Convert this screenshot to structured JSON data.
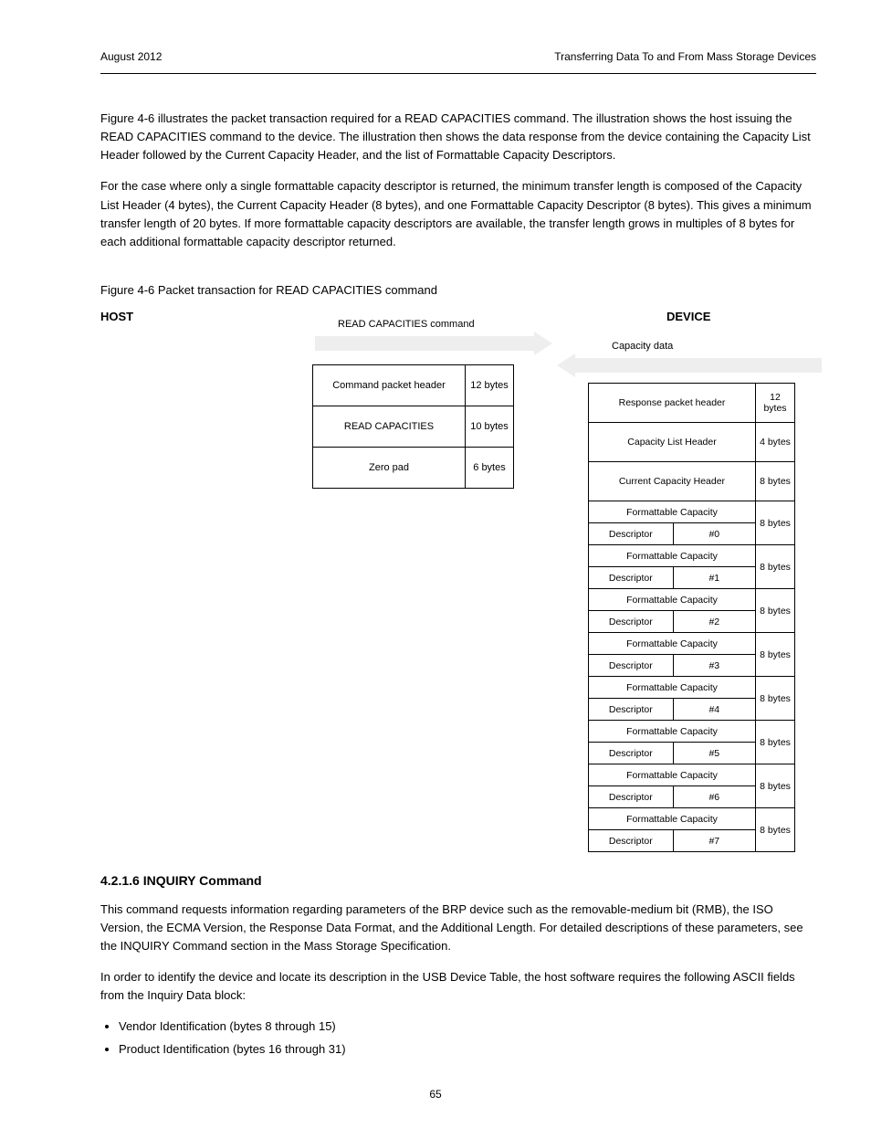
{
  "hdr_left": "August 2012",
  "hdr_right": "Transferring Data To and From Mass Storage Devices",
  "paragraphs": [
    "Figure 4-6 illustrates the packet transaction required for a READ CAPACITIES command. The illustration shows the host issuing the READ CAPACITIES command to the device. The illustration then shows the data response from the device containing the Capacity List Header followed by the Current Capacity Header, and the list of Formattable Capacity Descriptors.",
    "For the case where only a single formattable capacity descriptor is returned, the minimum transfer length is composed of the Capacity List Header (4 bytes), the Current Capacity Header (8 bytes), and one Formattable Capacity Descriptor (8 bytes). This gives a minimum transfer length of 20 bytes. If more formattable capacity descriptors are available, the transfer length grows in multiples of 8 bytes for each additional formattable capacity descriptor returned."
  ],
  "figure_caption": "Figure 4-6  Packet transaction for READ CAPACITIES command",
  "host_label": "HOST",
  "device_label": "DEVICE",
  "arrow_r_label": "READ CAPACITIES command",
  "arrow_l_label": "Capacity data",
  "cmd_rows": [
    {
      "c0": "Command packet header",
      "c1": "12 bytes"
    },
    {
      "c0": "READ CAPACITIES",
      "c1": "10 bytes"
    },
    {
      "c0": "Zero pad",
      "c1": "6 bytes"
    }
  ],
  "resp_rows": [
    {
      "type": "single",
      "r0": "Response packet header",
      "r1": "12 bytes"
    },
    {
      "type": "single",
      "r0": "Capacity List Header",
      "r1": "4 bytes"
    },
    {
      "type": "single",
      "r0": "Current Capacity Header",
      "r1": "8 bytes"
    },
    {
      "type": "split",
      "top": "Formattable Capacity",
      "b0": "Descriptor",
      "b1": "#0",
      "r1": "8 bytes"
    },
    {
      "type": "split",
      "top": "Formattable Capacity",
      "b0": "Descriptor",
      "b1": "#1",
      "r1": "8 bytes"
    },
    {
      "type": "split",
      "top": "Formattable Capacity",
      "b0": "Descriptor",
      "b1": "#2",
      "r1": "8 bytes"
    },
    {
      "type": "split",
      "top": "Formattable Capacity",
      "b0": "Descriptor",
      "b1": "#3",
      "r1": "8 bytes"
    },
    {
      "type": "split",
      "top": "Formattable Capacity",
      "b0": "Descriptor",
      "b1": "#4",
      "r1": "8 bytes"
    },
    {
      "type": "split",
      "top": "Formattable Capacity",
      "b0": "Descriptor",
      "b1": "#5",
      "r1": "8 bytes"
    },
    {
      "type": "split",
      "top": "Formattable Capacity",
      "b0": "Descriptor",
      "b1": "#6",
      "r1": "8 bytes"
    },
    {
      "type": "split",
      "top": "Formattable Capacity",
      "b0": "Descriptor",
      "b1": "#7",
      "r1": "8 bytes"
    }
  ],
  "section_heading": "4.2.1.6  INQUIRY Command",
  "section_paras": [
    "This command requests information regarding parameters of the BRP device such as the removable-medium bit (RMB), the ISO Version, the ECMA Version, the Response Data Format, and the Additional Length. For detailed descriptions of these parameters, see the INQUIRY Command section in the Mass Storage Specification.",
    "In order to identify the device and locate its description in the USB Device Table, the host software requires the following ASCII fields from the Inquiry Data block:"
  ],
  "bullets": [
    "Vendor Identification (bytes 8 through 15)",
    "Product Identification (bytes 16 through 31)"
  ],
  "page_number": "65"
}
